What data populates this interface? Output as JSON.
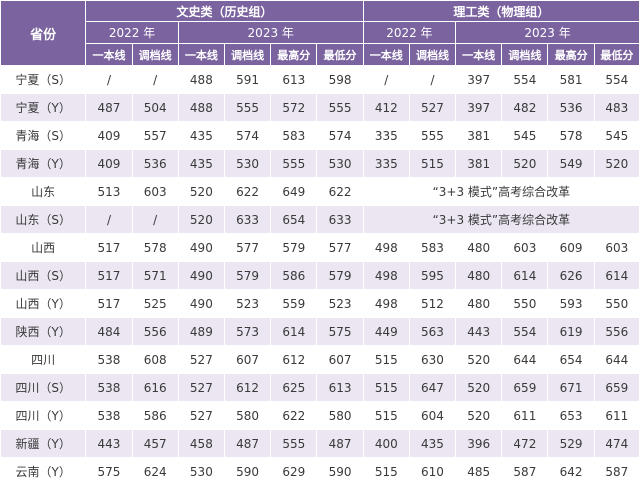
{
  "header": {
    "province": "省份",
    "arts_group": "文史类（历史组）",
    "sci_group": "理工类（物理组）",
    "year_2022": "2022 年",
    "year_2023": "2023 年",
    "col_tier1": "一本线",
    "col_adjust": "调档线",
    "col_max": "最高分",
    "col_min": "最低分"
  },
  "rows": [
    {
      "province": "宁夏（S）",
      "a": [
        "/",
        "/",
        "488",
        "591",
        "613",
        "598"
      ],
      "s": [
        "/",
        "/",
        "397",
        "554",
        "581",
        "554"
      ]
    },
    {
      "province": "宁夏（Y）",
      "a": [
        "487",
        "504",
        "488",
        "555",
        "572",
        "555"
      ],
      "s": [
        "412",
        "527",
        "397",
        "482",
        "536",
        "483"
      ]
    },
    {
      "province": "青海（S）",
      "a": [
        "409",
        "557",
        "435",
        "574",
        "583",
        "574"
      ],
      "s": [
        "335",
        "555",
        "381",
        "545",
        "578",
        "545"
      ]
    },
    {
      "province": "青海（Y）",
      "a": [
        "409",
        "536",
        "435",
        "530",
        "555",
        "530"
      ],
      "s": [
        "335",
        "515",
        "381",
        "520",
        "549",
        "520"
      ]
    },
    {
      "province": "山东",
      "a": [
        "513",
        "603",
        "520",
        "622",
        "649",
        "622"
      ],
      "note": "“3+3 模式”高考综合改革"
    },
    {
      "province": "山东（S）",
      "a": [
        "/",
        "/",
        "520",
        "633",
        "654",
        "633"
      ],
      "note": "“3+3 模式”高考综合改革"
    },
    {
      "province": "山西",
      "a": [
        "517",
        "578",
        "490",
        "577",
        "579",
        "577"
      ],
      "s": [
        "498",
        "583",
        "480",
        "603",
        "609",
        "603"
      ]
    },
    {
      "province": "山西（S）",
      "a": [
        "517",
        "571",
        "490",
        "579",
        "586",
        "579"
      ],
      "s": [
        "498",
        "595",
        "480",
        "614",
        "626",
        "614"
      ]
    },
    {
      "province": "山西（Y）",
      "a": [
        "517",
        "525",
        "490",
        "523",
        "559",
        "523"
      ],
      "s": [
        "498",
        "512",
        "480",
        "550",
        "593",
        "550"
      ]
    },
    {
      "province": "陕西（Y）",
      "a": [
        "484",
        "556",
        "489",
        "573",
        "614",
        "575"
      ],
      "s": [
        "449",
        "563",
        "443",
        "554",
        "619",
        "556"
      ]
    },
    {
      "province": "四川",
      "a": [
        "538",
        "608",
        "527",
        "607",
        "612",
        "607"
      ],
      "s": [
        "515",
        "630",
        "520",
        "644",
        "654",
        "644"
      ]
    },
    {
      "province": "四川（S）",
      "a": [
        "538",
        "616",
        "527",
        "612",
        "625",
        "613"
      ],
      "s": [
        "515",
        "647",
        "520",
        "659",
        "671",
        "659"
      ]
    },
    {
      "province": "四川（Y）",
      "a": [
        "538",
        "586",
        "527",
        "580",
        "622",
        "580"
      ],
      "s": [
        "515",
        "604",
        "520",
        "611",
        "653",
        "611"
      ]
    },
    {
      "province": "新疆（Y）",
      "a": [
        "443",
        "457",
        "458",
        "487",
        "555",
        "487"
      ],
      "s": [
        "400",
        "435",
        "396",
        "472",
        "529",
        "474"
      ]
    },
    {
      "province": "云南（Y）",
      "a": [
        "575",
        "624",
        "530",
        "590",
        "629",
        "590"
      ],
      "s": [
        "515",
        "610",
        "485",
        "587",
        "642",
        "587"
      ]
    }
  ]
}
